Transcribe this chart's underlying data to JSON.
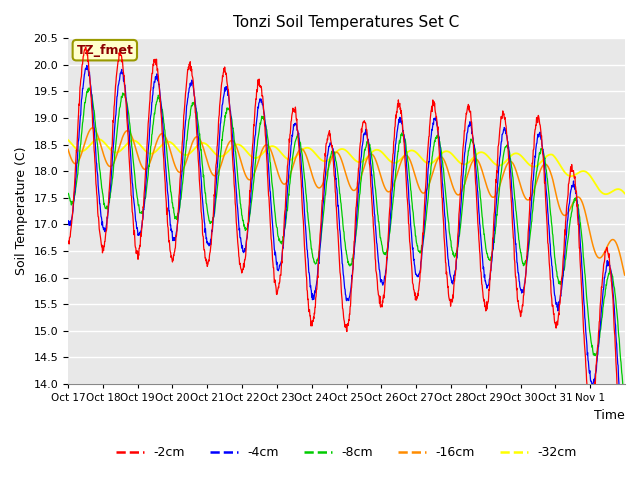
{
  "title": "Tonzi Soil Temperatures Set C",
  "xlabel": "Time",
  "ylabel": "Soil Temperature (C)",
  "ylim": [
    14.0,
    20.5
  ],
  "annotation": "TZ_fmet",
  "annotation_color": "#8B0000",
  "annotation_bg": "#ffffcc",
  "series_colors": {
    "-2cm": "#FF0000",
    "-4cm": "#0000FF",
    "-8cm": "#00CC00",
    "-16cm": "#FF8C00",
    "-32cm": "#FFFF00"
  },
  "x_tick_labels": [
    "Oct 17",
    "Oct 18",
    "Oct 19",
    "Oct 20",
    "Oct 21",
    "Oct 22",
    "Oct 23",
    "Oct 24",
    "Oct 25",
    "Oct 26",
    "Oct 27",
    "Oct 28",
    "Oct 29",
    "Oct 30",
    "Oct 31",
    "Nov 1"
  ],
  "n_days": 16
}
